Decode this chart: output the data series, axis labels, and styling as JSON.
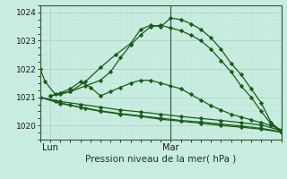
{
  "title": "Pression niveau de la mer( hPa )",
  "bg_color": "#c8ece0",
  "line_color": "#1a5c1a",
  "grid_color_major": "#b0d8c8",
  "grid_color_minor": "#c0e4d4",
  "yticks": [
    1020,
    1021,
    1022,
    1023,
    1024
  ],
  "ylim": [
    1019.55,
    1024.2
  ],
  "xlim": [
    0,
    48
  ],
  "xtick_positions": [
    2,
    26
  ],
  "xtick_labels": [
    "Lun",
    "Mar"
  ],
  "vline_x": 26,
  "series": [
    {
      "x": [
        0,
        1,
        3,
        6,
        9,
        12,
        15,
        18,
        20,
        22,
        24,
        26,
        28,
        30,
        32,
        34,
        36,
        38,
        40,
        42,
        44,
        46,
        48
      ],
      "y": [
        1022.0,
        1021.55,
        1021.1,
        1021.2,
        1021.55,
        1022.05,
        1022.5,
        1022.9,
        1023.4,
        1023.55,
        1023.5,
        1023.8,
        1023.75,
        1023.6,
        1023.4,
        1023.1,
        1022.7,
        1022.2,
        1021.8,
        1021.3,
        1020.8,
        1020.1,
        1019.8
      ]
    },
    {
      "x": [
        2,
        4,
        6,
        9,
        12,
        14,
        16,
        18,
        20,
        22,
        24,
        26,
        28,
        30,
        32,
        34,
        36,
        38,
        40,
        42,
        44,
        46,
        48
      ],
      "y": [
        1021.05,
        1021.1,
        1021.2,
        1021.4,
        1021.6,
        1021.9,
        1022.4,
        1022.85,
        1023.2,
        1023.5,
        1023.55,
        1023.45,
        1023.35,
        1023.2,
        1023.0,
        1022.7,
        1022.3,
        1021.9,
        1021.4,
        1021.0,
        1020.5,
        1020.05,
        1019.75
      ]
    },
    {
      "x": [
        2,
        4,
        6,
        8,
        10,
        12,
        14,
        16,
        18,
        20,
        22,
        24,
        26,
        28,
        30,
        32,
        34,
        36,
        38,
        40,
        42,
        44,
        46,
        48
      ],
      "y": [
        1021.05,
        1021.15,
        1021.3,
        1021.55,
        1021.35,
        1021.05,
        1021.2,
        1021.35,
        1021.5,
        1021.6,
        1021.6,
        1021.5,
        1021.4,
        1021.3,
        1021.1,
        1020.9,
        1020.7,
        1020.55,
        1020.4,
        1020.3,
        1020.2,
        1020.1,
        1020.0,
        1019.85
      ]
    },
    {
      "x": [
        0,
        4,
        8,
        12,
        16,
        20,
        24,
        28,
        32,
        36,
        40,
        44,
        48
      ],
      "y": [
        1021.0,
        1020.85,
        1020.75,
        1020.65,
        1020.55,
        1020.48,
        1020.4,
        1020.32,
        1020.25,
        1020.18,
        1020.1,
        1020.02,
        1019.82
      ]
    },
    {
      "x": [
        0,
        4,
        8,
        12,
        16,
        20,
        24,
        28,
        32,
        36,
        40,
        44,
        48
      ],
      "y": [
        1021.0,
        1020.78,
        1020.65,
        1020.52,
        1020.42,
        1020.34,
        1020.26,
        1020.18,
        1020.12,
        1020.05,
        1019.98,
        1019.9,
        1019.78
      ]
    },
    {
      "x": [
        0,
        3,
        6,
        9,
        12,
        16,
        20,
        24,
        28,
        32,
        36,
        40,
        44,
        48
      ],
      "y": [
        1021.0,
        1020.85,
        1020.72,
        1020.6,
        1020.5,
        1020.4,
        1020.32,
        1020.22,
        1020.15,
        1020.08,
        1020.0,
        1019.94,
        1019.87,
        1019.76
      ]
    }
  ]
}
